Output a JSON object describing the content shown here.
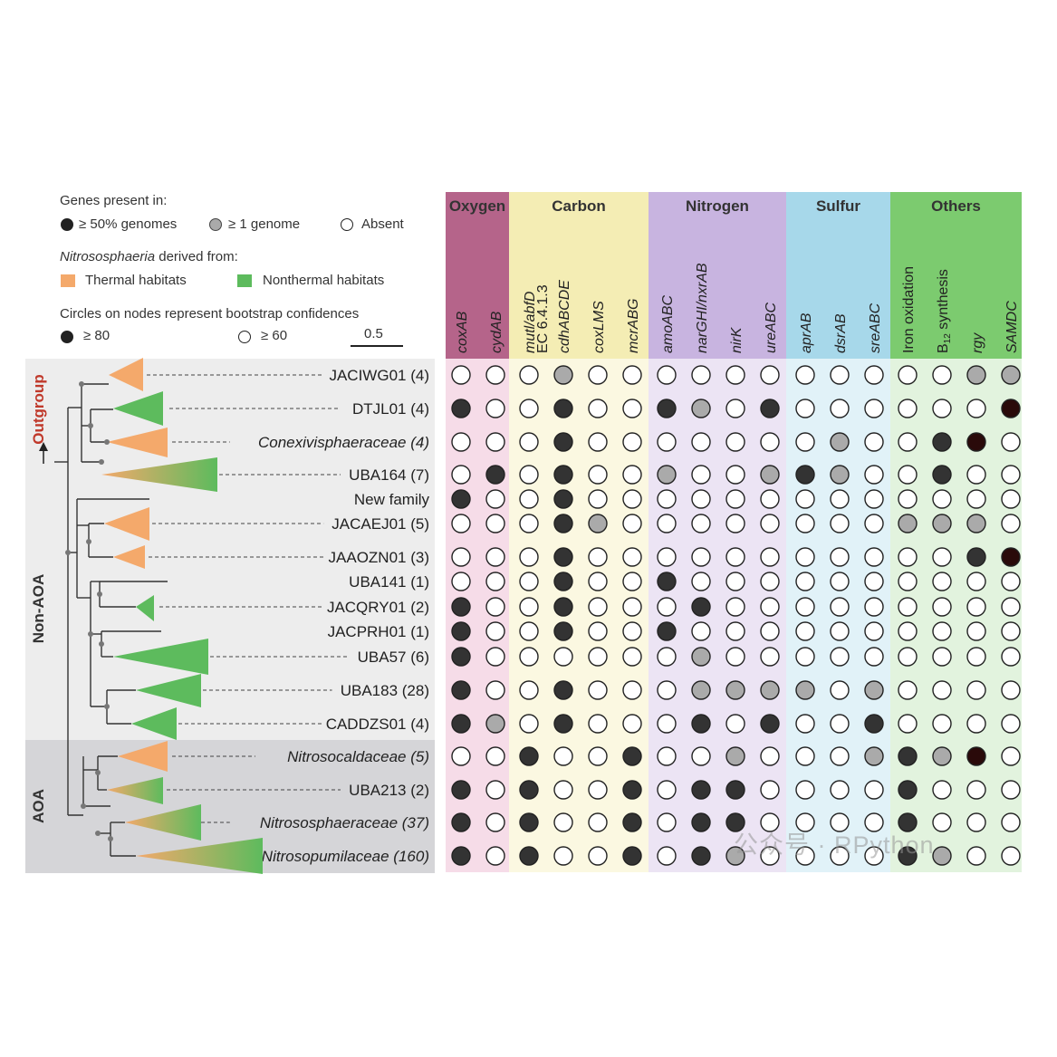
{
  "legend": {
    "genes_heading": "Genes present in:",
    "genes_items": [
      "≥ 50% genomes",
      "≥ 1 genome",
      "Absent"
    ],
    "derived_heading_italic": "Nitrososphaeria",
    "derived_heading_rest": " derived from:",
    "habitats": [
      "Thermal habitats",
      "Nonthermal habitats"
    ],
    "bootstrap_heading": "Circles on nodes represent bootstrap confidences",
    "bootstrap_items": [
      "≥ 80",
      "≥ 60"
    ],
    "scale_value": "0.5"
  },
  "colors": {
    "thermal": "#F4A96B",
    "nonthermal": "#5DBB5D",
    "nonaoa_bg": "#EDEDED",
    "aoa_bg": "#D5D5D8",
    "outgroup": "#C0392B",
    "present": "#333333",
    "partial": "#AAAAAA",
    "absent": "#FFFFFF",
    "samdc_present": "#2A0A0A"
  },
  "side_labels": [
    "Outgroup",
    "Non-AOA",
    "AOA"
  ],
  "categories": [
    {
      "name": "Oxygen",
      "color": "#B5648A",
      "light": "#F6DCE8",
      "span": 2
    },
    {
      "name": "Carbon",
      "color": "#F4EDB4",
      "light": "#FBF8E1",
      "span": 5
    },
    {
      "name": "Nitrogen",
      "color": "#C8B4E0",
      "light": "#ECE4F4",
      "span": 4
    },
    {
      "name": "Sulfur",
      "color": "#A7D8EA",
      "light": "#E1F2F8",
      "span": 3
    },
    {
      "name": "Others",
      "color": "#7CCB6F",
      "light": "#E2F3DE",
      "span": 4
    }
  ],
  "genes": [
    "coxAB",
    "cydAB",
    "mutl/abfD",
    "EC 6.4.1.3",
    "cdhABCDE",
    "coxLMS",
    "mcrABG",
    "amoABC",
    "narGHI/nxrAB",
    "nirK",
    "ureABC",
    "aprAB",
    "dsrAB",
    "sreABC",
    "Iron oxidation",
    "B",
    "rgy",
    "SAMDC"
  ],
  "gene_extra": {
    "subscript": "12",
    "suffix": " synthesis"
  },
  "taxa": [
    {
      "name": "JACIWG01 (4)",
      "italic": false
    },
    {
      "name": "DTJL01 (4)",
      "italic": false
    },
    {
      "name": "Conexivisphaeraceae (4)",
      "italic": true
    },
    {
      "name": "UBA164 (7)",
      "italic": false
    },
    {
      "name": "New family",
      "italic": false
    },
    {
      "name": "JACAEJ01 (5)",
      "italic": false
    },
    {
      "name": "JAAOZN01 (3)",
      "italic": false
    },
    {
      "name": "UBA141 (1)",
      "italic": false
    },
    {
      "name": "JACQRY01 (2)",
      "italic": false
    },
    {
      "name": "JACPRH01 (1)",
      "italic": false
    },
    {
      "name": "UBA57 (6)",
      "italic": false
    },
    {
      "name": "UBA183 (28)",
      "italic": false
    },
    {
      "name": "CADDZS01 (4)",
      "italic": false
    },
    {
      "name": "Nitrosocaldaceae (5)",
      "italic": true
    },
    {
      "name": "UBA213 (2)",
      "italic": false
    },
    {
      "name": "Nitrososphaeraceae (37)",
      "italic": true
    },
    {
      "name": "Nitrosopumilaceae (160)",
      "italic": true
    }
  ],
  "matrix": [
    [
      0,
      0,
      0,
      0,
      1,
      0,
      0,
      0,
      0,
      0,
      0,
      0,
      0,
      0,
      0,
      0,
      1,
      1
    ],
    [
      2,
      0,
      0,
      0,
      2,
      0,
      0,
      2,
      1,
      0,
      2,
      0,
      0,
      0,
      0,
      0,
      0,
      3
    ],
    [
      0,
      0,
      0,
      0,
      2,
      0,
      0,
      0,
      0,
      0,
      0,
      0,
      1,
      0,
      0,
      2,
      3,
      0
    ],
    [
      0,
      2,
      0,
      0,
      2,
      0,
      0,
      1,
      0,
      0,
      1,
      2,
      1,
      0,
      0,
      2,
      0,
      0
    ],
    [
      2,
      0,
      0,
      2,
      2,
      0,
      0,
      0,
      0,
      0,
      0,
      0,
      0,
      0,
      0,
      0,
      0,
      0
    ],
    [
      0,
      0,
      0,
      2,
      1,
      1,
      0,
      0,
      0,
      0,
      0,
      0,
      0,
      0,
      1,
      1,
      1,
      0
    ],
    [
      0,
      0,
      0,
      2,
      1,
      0,
      0,
      0,
      0,
      0,
      0,
      0,
      0,
      0,
      0,
      0,
      2,
      3
    ],
    [
      0,
      0,
      0,
      0,
      2,
      0,
      0,
      2,
      0,
      0,
      0,
      0,
      0,
      0,
      0,
      0,
      0,
      0
    ],
    [
      2,
      0,
      0,
      0,
      2,
      0,
      0,
      0,
      2,
      0,
      0,
      0,
      0,
      0,
      0,
      0,
      0,
      0
    ],
    [
      2,
      0,
      0,
      2,
      0,
      0,
      0,
      2,
      0,
      0,
      0,
      0,
      0,
      0,
      0,
      0,
      0,
      0
    ],
    [
      2,
      0,
      0,
      0,
      0,
      0,
      0,
      0,
      1,
      0,
      0,
      0,
      0,
      0,
      0,
      0,
      0,
      0
    ],
    [
      2,
      0,
      0,
      0,
      2,
      0,
      0,
      0,
      1,
      1,
      1,
      1,
      0,
      1,
      0,
      0,
      0,
      0
    ],
    [
      2,
      1,
      0,
      0,
      2,
      0,
      0,
      0,
      2,
      0,
      2,
      0,
      0,
      2,
      0,
      0,
      0,
      0
    ],
    [
      0,
      0,
      2,
      0,
      0,
      0,
      2,
      0,
      0,
      1,
      0,
      0,
      0,
      1,
      2,
      1,
      3,
      0
    ],
    [
      2,
      0,
      2,
      0,
      0,
      0,
      2,
      0,
      2,
      2,
      0,
      0,
      0,
      0,
      2,
      0,
      0,
      0
    ],
    [
      2,
      0,
      2,
      0,
      0,
      0,
      2,
      0,
      2,
      2,
      0,
      0,
      0,
      0,
      2,
      0,
      0,
      0
    ],
    [
      2,
      0,
      2,
      0,
      0,
      0,
      2,
      0,
      2,
      1,
      0,
      0,
      0,
      0,
      2,
      1,
      0,
      0
    ]
  ],
  "watermark": "公众号 · RPython"
}
